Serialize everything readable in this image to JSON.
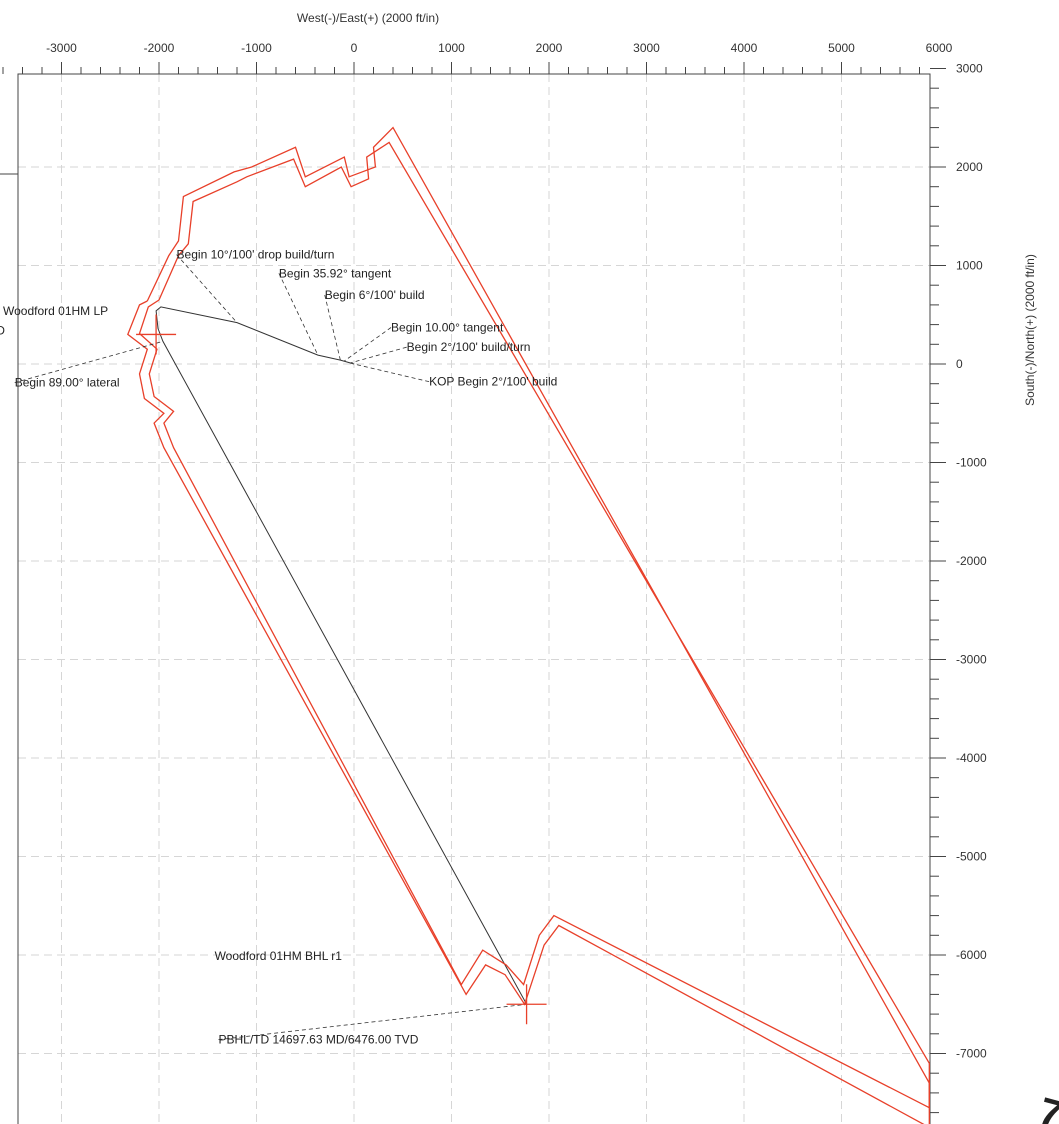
{
  "chart_data": {
    "type": "line",
    "title": "",
    "xlabel": "West(-)/East(+) (2000 ft/in)",
    "ylabel": "South(-)/North(+) (2000 ft/in)",
    "xlim": [
      -3600,
      5900
    ],
    "ylim": [
      -8000,
      3000
    ],
    "x_ticks": [
      -3000,
      -2000,
      -1000,
      0,
      1000,
      2000,
      3000,
      4000,
      5000,
      6000
    ],
    "y_ticks": [
      3000,
      2000,
      1000,
      0,
      -1000,
      -2000,
      -3000,
      -4000,
      -5000,
      -6000,
      -7000
    ],
    "grid": true,
    "colors": {
      "wellbore": "#333333",
      "boundary": "#e8402a",
      "grid": "#d6d6d6",
      "crosshair": "#e8402a"
    },
    "series": [
      {
        "role": "wellbore",
        "x": [
          0,
          -140,
          -370,
          -1200,
          -1980,
          -2030,
          -2010,
          -1960,
          1770
        ],
        "y": [
          0,
          40,
          90,
          420,
          580,
          540,
          360,
          230,
          -6500
        ]
      },
      {
        "role": "boundary-outer",
        "x": [
          -2120,
          -1900,
          -1800,
          -1750,
          -1230,
          -1050,
          -600,
          -500,
          -100,
          -50,
          220,
          200,
          400,
          5900,
          5900,
          2100,
          1950,
          1750,
          1550,
          1350,
          1150,
          -1950,
          -2050,
          -1950,
          -2150,
          -2200,
          -2120,
          -2320,
          -2200,
          -2120
        ],
        "y": [
          640,
          1100,
          1250,
          1700,
          1950,
          2000,
          2200,
          1900,
          2100,
          1900,
          2000,
          2200,
          2400,
          -7300,
          -7750,
          -5700,
          -5900,
          -6500,
          -6200,
          -6100,
          -6400,
          -850,
          -600,
          -500,
          -350,
          -100,
          150,
          300,
          600,
          640
        ]
      },
      {
        "role": "boundary-inner",
        "x": [
          -2000,
          -1800,
          -1700,
          -1650,
          -1200,
          -1100,
          -620,
          -500,
          -130,
          -30,
          150,
          130,
          360,
          5900,
          5900,
          2050,
          1900,
          1740,
          1560,
          1320,
          1100,
          -1850,
          -1950,
          -1850,
          -2050,
          -2100,
          -2020,
          -2200,
          -2110,
          -2000
        ],
        "y": [
          650,
          1100,
          1220,
          1650,
          1850,
          1900,
          2080,
          1800,
          2000,
          1800,
          1880,
          2100,
          2250,
          -7100,
          -7550,
          -5600,
          -5800,
          -6300,
          -6100,
          -5950,
          -6300,
          -850,
          -600,
          -480,
          -330,
          -100,
          150,
          310,
          580,
          650
        ]
      }
    ],
    "markers": [
      {
        "name": "Woodford 01HM LP",
        "x": -2030,
        "y": 300
      },
      {
        "name": "Woodford 01HM BHL r1",
        "x": 1770,
        "y": -6500
      }
    ],
    "annotations": [
      {
        "text": "Begin 10°/100' drop build/turn",
        "x": -1820,
        "y": 1070,
        "tx": -1200,
        "ty": 420
      },
      {
        "text": "Begin 35.92° tangent",
        "x": -770,
        "y": 880,
        "tx": -370,
        "ty": 90
      },
      {
        "text": "Begin 6°/100' build",
        "x": -300,
        "y": 660,
        "tx": -140,
        "ty": 40
      },
      {
        "text": "Begin 10.00° tangent",
        "x": 380,
        "y": 330,
        "tx": -100,
        "ty": 30
      },
      {
        "text": "Begin 2°/100' build/turn",
        "x": 540,
        "y": 130,
        "tx": -40,
        "ty": 10
      },
      {
        "text": "KOP Begin 2°/100' build",
        "x": 770,
        "y": -220,
        "tx": 0,
        "ty": 0
      },
      {
        "text": "Woodford 01HM LP",
        "x": -3600,
        "y": 500,
        "anchor": "start"
      },
      {
        "text": "Begin 89.00° lateral",
        "x": -3480,
        "y": -230,
        "anchor": "start",
        "tx": -1960,
        "ty": 230
      },
      {
        "text": "Woodford 01HM BHL r1",
        "x": -1430,
        "y": -6050
      },
      {
        "text": "PBHL/TD 14697.63 MD/6476.00 TVD",
        "x": -1390,
        "y": -6900,
        "tx": 1770,
        "ty": -6500
      },
      {
        "text": "D",
        "x": -3670,
        "y": 300,
        "anchor": "start"
      }
    ]
  }
}
